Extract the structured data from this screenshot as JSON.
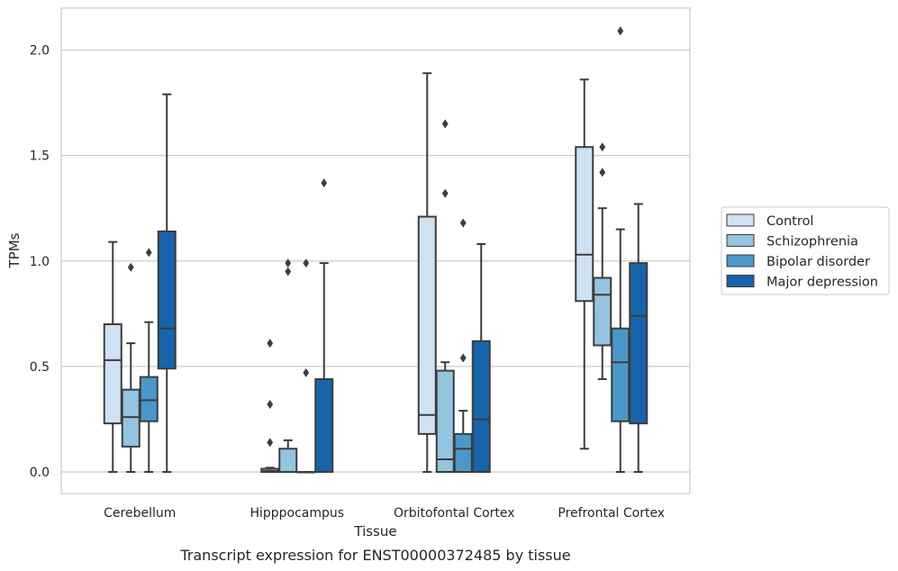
{
  "chart_data": {
    "type": "box",
    "caption": "Transcript expression for ENST00000372485 by tissue",
    "xlabel": "Tissue",
    "ylabel": "TPMs",
    "ylim": [
      -0.1,
      2.2
    ],
    "yticks": [
      "0.0",
      "0.5",
      "1.0",
      "1.5",
      "2.0"
    ],
    "grid": "horizontal",
    "legend_position": "right",
    "categories": [
      "Cerebellum",
      "Hipppocampus",
      "Orbitofontal Cortex",
      "Prefrontal Cortex"
    ],
    "series": [
      {
        "name": "Control",
        "color": "#d0e1f2",
        "boxes": [
          {
            "q1": 0.23,
            "median": 0.53,
            "q3": 0.7,
            "whisker_low": 0.0,
            "whisker_high": 1.09,
            "outliers": []
          },
          {
            "q1": 0.0,
            "median": 0.005,
            "q3": 0.015,
            "whisker_low": 0.0,
            "whisker_high": 0.02,
            "outliers": [
              0.14,
              0.32,
              0.61
            ]
          },
          {
            "q1": 0.18,
            "median": 0.27,
            "q3": 1.21,
            "whisker_low": 0.0,
            "whisker_high": 1.89,
            "outliers": []
          },
          {
            "q1": 0.81,
            "median": 1.03,
            "q3": 1.54,
            "whisker_low": 0.11,
            "whisker_high": 1.86,
            "outliers": []
          }
        ]
      },
      {
        "name": "Schizophrenia",
        "color": "#94c4df",
        "boxes": [
          {
            "q1": 0.12,
            "median": 0.26,
            "q3": 0.39,
            "whisker_low": 0.0,
            "whisker_high": 0.61,
            "outliers": [
              0.97
            ]
          },
          {
            "q1": 0.0,
            "median": 0.0,
            "q3": 0.11,
            "whisker_low": 0.0,
            "whisker_high": 0.15,
            "outliers": [
              0.95,
              0.99
            ]
          },
          {
            "q1": 0.0,
            "median": 0.06,
            "q3": 0.48,
            "whisker_low": 0.0,
            "whisker_high": 0.52,
            "outliers": [
              1.32,
              1.65
            ]
          },
          {
            "q1": 0.6,
            "median": 0.84,
            "q3": 0.92,
            "whisker_low": 0.44,
            "whisker_high": 1.25,
            "outliers": [
              1.42,
              1.54
            ]
          }
        ]
      },
      {
        "name": "Bipolar disorder",
        "color": "#4a98c9",
        "boxes": [
          {
            "q1": 0.24,
            "median": 0.34,
            "q3": 0.45,
            "whisker_low": 0.0,
            "whisker_high": 0.71,
            "outliers": [
              1.04
            ]
          },
          {
            "q1": 0.0,
            "median": 0.0,
            "q3": 0.0,
            "whisker_low": 0.0,
            "whisker_high": 0.0,
            "outliers": [
              0.47,
              0.99
            ]
          },
          {
            "q1": 0.0,
            "median": 0.11,
            "q3": 0.18,
            "whisker_low": 0.0,
            "whisker_high": 0.29,
            "outliers": [
              0.54,
              1.18
            ]
          },
          {
            "q1": 0.24,
            "median": 0.52,
            "q3": 0.68,
            "whisker_low": 0.0,
            "whisker_high": 1.15,
            "outliers": [
              2.09
            ]
          }
        ]
      },
      {
        "name": "Major depression",
        "color": "#1764ab",
        "boxes": [
          {
            "q1": 0.49,
            "median": 0.68,
            "q3": 1.14,
            "whisker_low": 0.0,
            "whisker_high": 1.79,
            "outliers": []
          },
          {
            "q1": 0.0,
            "median": 0.0,
            "q3": 0.44,
            "whisker_low": 0.0,
            "whisker_high": 0.99,
            "outliers": [
              1.37
            ]
          },
          {
            "q1": 0.0,
            "median": 0.25,
            "q3": 0.62,
            "whisker_low": 0.0,
            "whisker_high": 1.08,
            "outliers": []
          },
          {
            "q1": 0.23,
            "median": 0.74,
            "q3": 0.99,
            "whisker_low": 0.0,
            "whisker_high": 1.27,
            "outliers": []
          }
        ]
      }
    ]
  }
}
